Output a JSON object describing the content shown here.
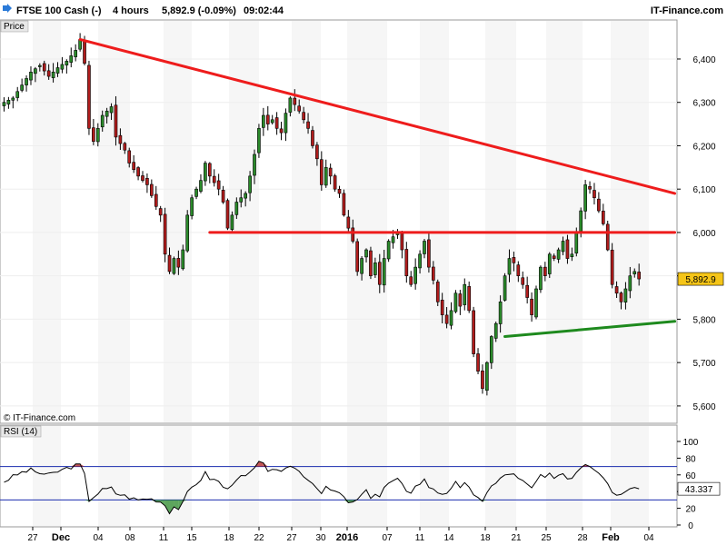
{
  "header": {
    "instrument": "FTSE 100 Cash (-)",
    "timeframe": "4 hours",
    "price_change": "5,892.9 (-0.09%)",
    "time": "09:02:44",
    "source": "IT-Finance.com"
  },
  "panels": {
    "price_label": "Price",
    "copyright": "© IT-Finance.com",
    "rsi_label": "RSI (14)"
  },
  "colors": {
    "resistance_line": "#ee1c1c",
    "support_line": "#1e8a1e",
    "bull_candle": "#2a8a2a",
    "bear_candle": "#b01c1c",
    "current_price_tag": "#f5c518",
    "rsi_line": "#000000",
    "rsi_levels": "#1a2cae",
    "weekly_bands": "#eeeeee"
  },
  "chart_data": [
    {
      "type": "candlestick",
      "title": "FTSE 100 Cash (-)",
      "ylim": [
        5560,
        6490
      ],
      "yticks": [
        5600,
        5700,
        5800,
        5900,
        6000,
        6100,
        6200,
        6300,
        6400
      ],
      "ytick_labels": [
        "5,600",
        "5,700",
        "5,800",
        "5,900",
        "6,000",
        "6,100",
        "6,200",
        "6,300",
        "6,400"
      ],
      "x_labels": [
        "27",
        "Dec",
        "04",
        "08",
        "11",
        "15",
        "18",
        "22",
        "27",
        "30",
        "2016",
        "07",
        "11",
        "14",
        "18",
        "21",
        "25",
        "28",
        "Feb",
        "04"
      ],
      "x_label_bold": [
        "Dec",
        "2016",
        "Feb"
      ],
      "current_price": 5892.9,
      "current_price_label": "5,892.9",
      "close_path": [
        [
          0,
          6300
        ],
        [
          2,
          6310
        ],
        [
          4,
          6340
        ],
        [
          6,
          6370
        ],
        [
          8,
          6385
        ],
        [
          10,
          6360
        ],
        [
          12,
          6380
        ],
        [
          14,
          6395
        ],
        [
          16,
          6420
        ],
        [
          17,
          6445
        ],
        [
          18,
          6390
        ],
        [
          19,
          6240
        ],
        [
          20,
          6210
        ],
        [
          22,
          6270
        ],
        [
          24,
          6290
        ],
        [
          25,
          6220
        ],
        [
          27,
          6190
        ],
        [
          28,
          6160
        ],
        [
          30,
          6130
        ],
        [
          32,
          6110
        ],
        [
          34,
          6060
        ],
        [
          35,
          6040
        ],
        [
          36,
          5950
        ],
        [
          37,
          5910
        ],
        [
          38,
          5940
        ],
        [
          39,
          5920
        ],
        [
          40,
          5960
        ],
        [
          41,
          6040
        ],
        [
          42,
          6080
        ],
        [
          44,
          6120
        ],
        [
          45,
          6160
        ],
        [
          46,
          6130
        ],
        [
          48,
          6100
        ],
        [
          49,
          6070
        ],
        [
          50,
          6010
        ],
        [
          51,
          6040
        ],
        [
          52,
          6070
        ],
        [
          54,
          6090
        ],
        [
          55,
          6130
        ],
        [
          56,
          6180
        ],
        [
          57,
          6240
        ],
        [
          58,
          6270
        ],
        [
          59,
          6250
        ],
        [
          60,
          6260
        ],
        [
          61,
          6240
        ],
        [
          62,
          6230
        ],
        [
          63,
          6275
        ],
        [
          64,
          6310
        ],
        [
          65,
          6295
        ],
        [
          66,
          6280
        ],
        [
          67,
          6260
        ],
        [
          68,
          6240
        ],
        [
          69,
          6200
        ],
        [
          70,
          6170
        ],
        [
          71,
          6110
        ],
        [
          72,
          6150
        ],
        [
          73,
          6130
        ],
        [
          74,
          6100
        ],
        [
          75,
          6090
        ],
        [
          76,
          6040
        ],
        [
          77,
          6010
        ],
        [
          78,
          5980
        ],
        [
          79,
          5910
        ],
        [
          80,
          5940
        ],
        [
          81,
          5960
        ],
        [
          82,
          5900
        ],
        [
          83,
          5930
        ],
        [
          84,
          5880
        ],
        [
          85,
          5940
        ],
        [
          86,
          5980
        ],
        [
          87,
          5990
        ],
        [
          88,
          6000
        ],
        [
          89,
          5960
        ],
        [
          90,
          5900
        ],
        [
          91,
          5880
        ],
        [
          92,
          5920
        ],
        [
          93,
          5950
        ],
        [
          94,
          5980
        ],
        [
          95,
          5920
        ],
        [
          96,
          5890
        ],
        [
          97,
          5840
        ],
        [
          98,
          5810
        ],
        [
          99,
          5790
        ],
        [
          100,
          5820
        ],
        [
          101,
          5860
        ],
        [
          102,
          5830
        ],
        [
          103,
          5880
        ],
        [
          104,
          5820
        ],
        [
          105,
          5720
        ],
        [
          106,
          5680
        ],
        [
          107,
          5640
        ],
        [
          108,
          5700
        ],
        [
          109,
          5760
        ],
        [
          110,
          5790
        ],
        [
          111,
          5840
        ],
        [
          112,
          5900
        ],
        [
          113,
          5940
        ],
        [
          114,
          5930
        ],
        [
          115,
          5900
        ],
        [
          116,
          5880
        ],
        [
          117,
          5850
        ],
        [
          118,
          5810
        ],
        [
          119,
          5870
        ],
        [
          120,
          5920
        ],
        [
          121,
          5900
        ],
        [
          122,
          5950
        ],
        [
          123,
          5940
        ],
        [
          124,
          5960
        ],
        [
          125,
          5980
        ],
        [
          126,
          5940
        ],
        [
          127,
          5950
        ],
        [
          128,
          6000
        ],
        [
          129,
          6050
        ],
        [
          130,
          6110
        ],
        [
          131,
          6100
        ],
        [
          132,
          6080
        ],
        [
          133,
          6050
        ],
        [
          134,
          6020
        ],
        [
          135,
          5960
        ],
        [
          136,
          5880
        ],
        [
          137,
          5860
        ],
        [
          138,
          5840
        ],
        [
          139,
          5870
        ],
        [
          140,
          5900
        ],
        [
          141,
          5910
        ],
        [
          142,
          5892.9
        ]
      ],
      "annotations": [
        {
          "name": "descending-resistance-line",
          "kind": "trendline",
          "x1": 17,
          "y1": 6445,
          "x2": 150,
          "y2": 6090
        },
        {
          "name": "horizontal-resistance-line",
          "kind": "trendline",
          "x1": 46,
          "y1": 6000,
          "x2": 150,
          "y2": 6000
        },
        {
          "name": "rising-support-line",
          "kind": "trendline",
          "x1": 112,
          "y1": 5760,
          "x2": 150,
          "y2": 5795
        }
      ]
    },
    {
      "type": "line",
      "title": "RSI (14)",
      "ylim": [
        0,
        100
      ],
      "yticks": [
        0,
        20,
        40,
        60,
        80,
        100
      ],
      "levels": [
        30,
        70
      ],
      "current_value": 43.337,
      "current_value_label": "43.337",
      "values": [
        [
          0,
          52
        ],
        [
          2,
          58
        ],
        [
          4,
          63
        ],
        [
          6,
          66
        ],
        [
          8,
          62
        ],
        [
          10,
          60
        ],
        [
          12,
          64
        ],
        [
          14,
          68
        ],
        [
          16,
          71
        ],
        [
          17,
          72
        ],
        [
          18,
          60
        ],
        [
          19,
          30
        ],
        [
          20,
          34
        ],
        [
          22,
          42
        ],
        [
          24,
          44
        ],
        [
          25,
          38
        ],
        [
          27,
          35
        ],
        [
          28,
          33
        ],
        [
          30,
          30
        ],
        [
          32,
          32
        ],
        [
          34,
          30
        ],
        [
          35,
          28
        ],
        [
          36,
          24
        ],
        [
          37,
          16
        ],
        [
          38,
          22
        ],
        [
          39,
          20
        ],
        [
          40,
          26
        ],
        [
          41,
          38
        ],
        [
          42,
          45
        ],
        [
          44,
          55
        ],
        [
          45,
          62
        ],
        [
          46,
          56
        ],
        [
          48,
          52
        ],
        [
          49,
          46
        ],
        [
          50,
          42
        ],
        [
          51,
          50
        ],
        [
          52,
          56
        ],
        [
          54,
          58
        ],
        [
          55,
          62
        ],
        [
          56,
          68
        ],
        [
          57,
          74
        ],
        [
          58,
          72
        ],
        [
          59,
          66
        ],
        [
          60,
          68
        ],
        [
          61,
          64
        ],
        [
          62,
          62
        ],
        [
          63,
          66
        ],
        [
          64,
          72
        ],
        [
          65,
          68
        ],
        [
          66,
          64
        ],
        [
          67,
          60
        ],
        [
          68,
          55
        ],
        [
          69,
          50
        ],
        [
          70,
          46
        ],
        [
          71,
          38
        ],
        [
          72,
          44
        ],
        [
          73,
          42
        ],
        [
          74,
          40
        ],
        [
          75,
          38
        ],
        [
          76,
          32
        ],
        [
          77,
          28
        ],
        [
          78,
          26
        ],
        [
          79,
          30
        ],
        [
          80,
          36
        ],
        [
          81,
          40
        ],
        [
          82,
          34
        ],
        [
          83,
          38
        ],
        [
          84,
          34
        ],
        [
          85,
          44
        ],
        [
          86,
          50
        ],
        [
          87,
          52
        ],
        [
          88,
          54
        ],
        [
          89,
          48
        ],
        [
          90,
          42
        ],
        [
          91,
          40
        ],
        [
          92,
          46
        ],
        [
          93,
          50
        ],
        [
          94,
          54
        ],
        [
          95,
          46
        ],
        [
          96,
          44
        ],
        [
          97,
          40
        ],
        [
          98,
          38
        ],
        [
          99,
          36
        ],
        [
          100,
          42
        ],
        [
          101,
          50
        ],
        [
          102,
          46
        ],
        [
          103,
          52
        ],
        [
          104,
          44
        ],
        [
          105,
          34
        ],
        [
          106,
          32
        ],
        [
          107,
          30
        ],
        [
          108,
          40
        ],
        [
          109,
          46
        ],
        [
          110,
          50
        ],
        [
          111,
          55
        ],
        [
          112,
          60
        ],
        [
          113,
          62
        ],
        [
          114,
          60
        ],
        [
          115,
          55
        ],
        [
          116,
          52
        ],
        [
          117,
          48
        ],
        [
          118,
          44
        ],
        [
          119,
          52
        ],
        [
          120,
          58
        ],
        [
          121,
          56
        ],
        [
          122,
          60
        ],
        [
          123,
          58
        ],
        [
          124,
          60
        ],
        [
          125,
          62
        ],
        [
          126,
          56
        ],
        [
          127,
          58
        ],
        [
          128,
          64
        ],
        [
          129,
          70
        ],
        [
          130,
          74
        ],
        [
          131,
          72
        ],
        [
          132,
          68
        ],
        [
          133,
          64
        ],
        [
          134,
          58
        ],
        [
          135,
          50
        ],
        [
          136,
          40
        ],
        [
          137,
          38
        ],
        [
          138,
          36
        ],
        [
          139,
          42
        ],
        [
          140,
          46
        ],
        [
          141,
          47
        ],
        [
          142,
          43.337
        ]
      ]
    }
  ]
}
